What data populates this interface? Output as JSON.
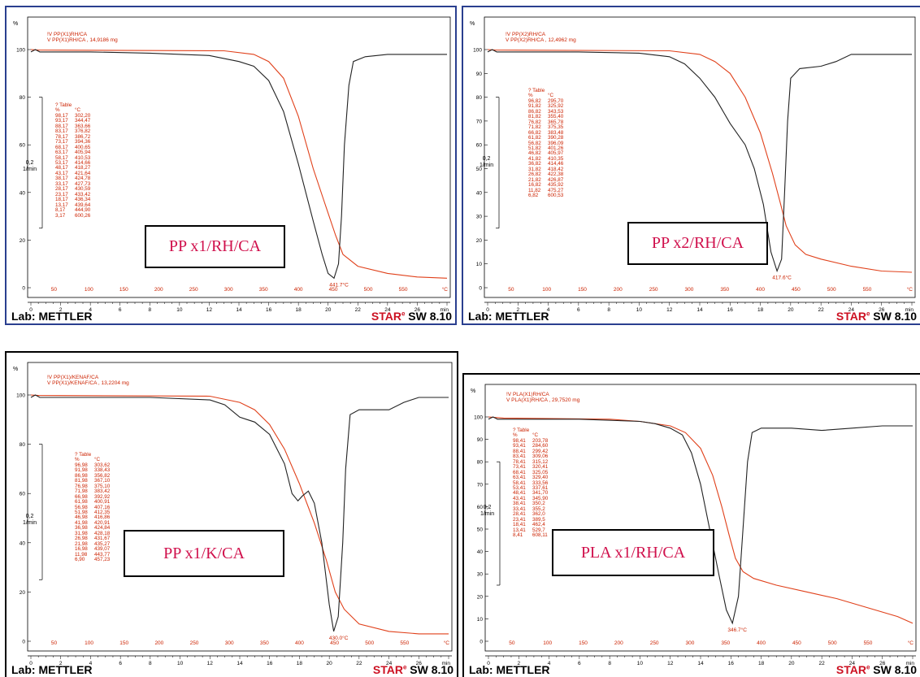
{
  "footer": {
    "lab": "Lab: METTLER",
    "brand": "STAR",
    "reg": "e",
    "version": "SW 8.10"
  },
  "units": {
    "percent": "%",
    "celsius": "°C",
    "min": "min"
  },
  "chart_data": [
    {
      "type": "line",
      "sample_label": "PP x1/RH/CA",
      "header_line1": "!V PP(X1)RH/CA",
      "header_line2": "V PP(X1)RH/CA , 14,9186 mg",
      "y_ticks": [
        "100",
        "80",
        "60",
        "40",
        "20",
        "0"
      ],
      "time_ticks": [
        "0",
        "2",
        "4",
        "6",
        "8",
        "10",
        "12",
        "14",
        "16",
        "18",
        "20",
        "22",
        "24",
        "26"
      ],
      "time_unit": "min",
      "temp_ticks": [
        "50",
        "100",
        "150",
        "200",
        "250",
        "300",
        "350",
        "400",
        "450",
        "500",
        "550"
      ],
      "temp_unit": "°C",
      "scale_value": "0,2",
      "scale_unit": "1/min",
      "peak_label": "441.7°C",
      "table_title": "? Table",
      "table_headers": [
        "%",
        "°C"
      ],
      "table": [
        [
          "98,17",
          "302,20"
        ],
        [
          "93,17",
          "344,47"
        ],
        [
          "88,17",
          "363,66"
        ],
        [
          "83,17",
          "376,82"
        ],
        [
          "78,17",
          "386,72"
        ],
        [
          "73,17",
          "394,36"
        ],
        [
          "68,17",
          "400,65"
        ],
        [
          "63,17",
          "405,94"
        ],
        [
          "58,17",
          "410,53"
        ],
        [
          "53,17",
          "414,66"
        ],
        [
          "48,17",
          "418,27"
        ],
        [
          "43,17",
          "421,64"
        ],
        [
          "38,17",
          "424,78"
        ],
        [
          "33,17",
          "427,73"
        ],
        [
          "28,17",
          "430,59"
        ],
        [
          "23,17",
          "433,42"
        ],
        [
          "18,17",
          "436,34"
        ],
        [
          "13,17",
          "439,64"
        ],
        [
          "8,17",
          "444,90"
        ],
        [
          "3,17",
          "600,26"
        ]
      ],
      "tg_curve": [
        [
          0,
          100
        ],
        [
          0.5,
          99.8
        ],
        [
          13,
          99.5
        ],
        [
          15,
          98
        ],
        [
          16,
          95
        ],
        [
          17,
          88
        ],
        [
          18,
          72
        ],
        [
          19,
          50
        ],
        [
          19.8,
          35
        ],
        [
          20.5,
          22
        ],
        [
          21,
          14
        ],
        [
          22,
          9
        ],
        [
          24,
          6
        ],
        [
          26,
          4.5
        ],
        [
          28,
          4
        ]
      ],
      "dtg_curve": [
        [
          0,
          99
        ],
        [
          0.3,
          100
        ],
        [
          0.6,
          99
        ],
        [
          4,
          99
        ],
        [
          8,
          98.5
        ],
        [
          12,
          97.5
        ],
        [
          14,
          95
        ],
        [
          15,
          93
        ],
        [
          16,
          87
        ],
        [
          17,
          74
        ],
        [
          18,
          52
        ],
        [
          19,
          28
        ],
        [
          19.6,
          14
        ],
        [
          20,
          6
        ],
        [
          20.4,
          4
        ],
        [
          20.7,
          10
        ],
        [
          20.9,
          30
        ],
        [
          21.1,
          60
        ],
        [
          21.4,
          85
        ],
        [
          21.7,
          95
        ],
        [
          22.5,
          97
        ],
        [
          24,
          98
        ],
        [
          28,
          98
        ]
      ]
    },
    {
      "type": "line",
      "sample_label": "PP x2/RH/CA",
      "header_line1": "!V PP(X2)RH/CA",
      "header_line2": "V PP(X2)RH/CA , 12,4962 mg",
      "y_ticks": [
        "100",
        "90",
        "80",
        "70",
        "60",
        "50",
        "40",
        "30",
        "20",
        "10",
        "0"
      ],
      "time_ticks": [
        "0",
        "2",
        "4",
        "6",
        "8",
        "10",
        "12",
        "14",
        "16",
        "18",
        "20",
        "22",
        "24",
        "26"
      ],
      "time_unit": "min",
      "temp_ticks": [
        "50",
        "100",
        "150",
        "200",
        "250",
        "300",
        "350",
        "400",
        "450",
        "500",
        "550"
      ],
      "temp_unit": "°C",
      "scale_value": "0,2",
      "scale_unit": "1/min",
      "peak_label": "417.6°C",
      "table_title": "? Table",
      "table_headers": [
        "%",
        "°C"
      ],
      "table": [
        [
          "96,82",
          "295,70"
        ],
        [
          "91,82",
          "325,92"
        ],
        [
          "86,82",
          "343,53"
        ],
        [
          "81,82",
          "355,40"
        ],
        [
          "76,82",
          "365,78"
        ],
        [
          "71,82",
          "375,35"
        ],
        [
          "66,82",
          "383,48"
        ],
        [
          "61,82",
          "390,28"
        ],
        [
          "56,82",
          "396,09"
        ],
        [
          "51,82",
          "401,26"
        ],
        [
          "46,82",
          "405,97"
        ],
        [
          "41,82",
          "410,35"
        ],
        [
          "36,82",
          "414,46"
        ],
        [
          "31,82",
          "418,42"
        ],
        [
          "26,82",
          "422,38"
        ],
        [
          "21,82",
          "426,87"
        ],
        [
          "16,82",
          "435,92"
        ],
        [
          "11,82",
          "475,27"
        ],
        [
          "6,82",
          "600,53"
        ]
      ],
      "tg_curve": [
        [
          0,
          100
        ],
        [
          0.5,
          99.8
        ],
        [
          12,
          99.5
        ],
        [
          14,
          98
        ],
        [
          15,
          95
        ],
        [
          16,
          90
        ],
        [
          17,
          80
        ],
        [
          18,
          65
        ],
        [
          18.8,
          48
        ],
        [
          19.3,
          36
        ],
        [
          19.7,
          26
        ],
        [
          20.3,
          18
        ],
        [
          21,
          14
        ],
        [
          22,
          12
        ],
        [
          24,
          9
        ],
        [
          26,
          7
        ],
        [
          28,
          6.5
        ]
      ],
      "dtg_curve": [
        [
          0,
          99
        ],
        [
          0.3,
          100
        ],
        [
          0.6,
          99
        ],
        [
          6,
          99
        ],
        [
          10,
          98.5
        ],
        [
          12,
          97
        ],
        [
          13,
          94
        ],
        [
          14,
          88
        ],
        [
          15,
          80
        ],
        [
          16,
          69
        ],
        [
          17,
          60
        ],
        [
          17.6,
          50
        ],
        [
          18.2,
          35
        ],
        [
          18.7,
          15
        ],
        [
          19.1,
          7
        ],
        [
          19.4,
          12
        ],
        [
          19.6,
          40
        ],
        [
          19.8,
          70
        ],
        [
          20,
          88
        ],
        [
          20.6,
          92
        ],
        [
          22,
          93
        ],
        [
          23,
          95
        ],
        [
          24,
          98
        ],
        [
          26,
          98
        ],
        [
          28,
          98
        ]
      ]
    },
    {
      "type": "line",
      "sample_label": "PP x1/K/CA",
      "header_line1": "!V PP(X1)/KENAF/CA",
      "header_line2": "V PP(X1)/KENAF/CA , 13,2204 mg",
      "y_ticks": [
        "100",
        "80",
        "60",
        "40",
        "20",
        "0"
      ],
      "time_ticks": [
        "0",
        "2",
        "4",
        "6",
        "8",
        "10",
        "12",
        "14",
        "16",
        "18",
        "20",
        "22",
        "24",
        "26"
      ],
      "time_unit": "min",
      "temp_ticks": [
        "50",
        "100",
        "150",
        "200",
        "250",
        "300",
        "350",
        "400",
        "450",
        "500",
        "550"
      ],
      "temp_unit": "°C",
      "scale_value": "0,2",
      "scale_unit": "1/min",
      "peak_label": "430.0°C",
      "table_title": "? Table",
      "table_headers": [
        "%",
        "°C"
      ],
      "table": [
        [
          "96,98",
          "303,62"
        ],
        [
          "91,98",
          "338,43"
        ],
        [
          "86,98",
          "356,82"
        ],
        [
          "81,98",
          "367,10"
        ],
        [
          "76,98",
          "375,10"
        ],
        [
          "71,98",
          "383,42"
        ],
        [
          "66,98",
          "392,92"
        ],
        [
          "61,98",
          "400,91"
        ],
        [
          "56,98",
          "407,16"
        ],
        [
          "51,98",
          "412,35"
        ],
        [
          "46,98",
          "416,86"
        ],
        [
          "41,98",
          "420,91"
        ],
        [
          "36,98",
          "424,84"
        ],
        [
          "31,98",
          "428,18"
        ],
        [
          "26,98",
          "431,67"
        ],
        [
          "21,98",
          "435,27"
        ],
        [
          "16,98",
          "439,07"
        ],
        [
          "11,98",
          "443,77"
        ],
        [
          "6,90",
          "457,23"
        ]
      ],
      "tg_curve": [
        [
          0,
          100
        ],
        [
          0.5,
          99.8
        ],
        [
          12,
          99.5
        ],
        [
          14,
          97
        ],
        [
          15,
          94
        ],
        [
          16,
          88
        ],
        [
          17,
          78
        ],
        [
          18,
          64
        ],
        [
          19,
          48
        ],
        [
          19.8,
          33
        ],
        [
          20.4,
          20
        ],
        [
          21,
          13
        ],
        [
          22,
          7
        ],
        [
          24,
          4
        ],
        [
          26,
          3
        ],
        [
          28,
          3
        ]
      ],
      "dtg_curve": [
        [
          0,
          99
        ],
        [
          0.3,
          100
        ],
        [
          0.6,
          99
        ],
        [
          8,
          99
        ],
        [
          12,
          98
        ],
        [
          13,
          96
        ],
        [
          14,
          91
        ],
        [
          14.5,
          90
        ],
        [
          15,
          89
        ],
        [
          16,
          84
        ],
        [
          17,
          72
        ],
        [
          17.5,
          60
        ],
        [
          17.9,
          57
        ],
        [
          18.2,
          59
        ],
        [
          18.6,
          61
        ],
        [
          19,
          56
        ],
        [
          19.5,
          40
        ],
        [
          20,
          15
        ],
        [
          20.3,
          4
        ],
        [
          20.6,
          10
        ],
        [
          20.9,
          40
        ],
        [
          21.1,
          70
        ],
        [
          21.4,
          92
        ],
        [
          22,
          94
        ],
        [
          24,
          94
        ],
        [
          25,
          97
        ],
        [
          26,
          99
        ],
        [
          28,
          99
        ]
      ]
    },
    {
      "type": "line",
      "sample_label": "PLA x1/RH/CA",
      "header_line1": "!V PLA(X1)RH/CA",
      "header_line2": "V PLA(X1)RH/CA , 29,7520 mg",
      "y_ticks": [
        "100",
        "90",
        "80",
        "70",
        "60",
        "50",
        "40",
        "30",
        "20",
        "10",
        "0"
      ],
      "time_ticks": [
        "0",
        "2",
        "4",
        "6",
        "8",
        "10",
        "12",
        "14",
        "16",
        "18",
        "20",
        "22",
        "24",
        "26"
      ],
      "time_unit": "min",
      "temp_ticks": [
        "50",
        "100",
        "150",
        "200",
        "250",
        "300",
        "350",
        "400",
        "450",
        "500",
        "550"
      ],
      "temp_unit": "°C",
      "scale_value": "0,2",
      "scale_unit": "1/min",
      "peak_label": "346.7°C",
      "table_title": "? Table",
      "table_headers": [
        "%",
        "°C"
      ],
      "table": [
        [
          "98,41",
          "203,78"
        ],
        [
          "93,41",
          "284,60"
        ],
        [
          "88,41",
          "299,42"
        ],
        [
          "83,41",
          "309,06"
        ],
        [
          "78,41",
          "315,12"
        ],
        [
          "73,41",
          "320,41"
        ],
        [
          "68,41",
          "325,05"
        ],
        [
          "63,41",
          "329,40"
        ],
        [
          "58,41",
          "333,56"
        ],
        [
          "53,41",
          "337,61"
        ],
        [
          "48,41",
          "341,70"
        ],
        [
          "43,41",
          "345,90"
        ],
        [
          "38,41",
          "350,2"
        ],
        [
          "33,41",
          "355,2"
        ],
        [
          "28,41",
          "362,0"
        ],
        [
          "23,41",
          "389,5"
        ],
        [
          "18,41",
          "462,4"
        ],
        [
          "13,41",
          "529,7"
        ],
        [
          "8,41",
          "608,11"
        ]
      ],
      "tg_curve": [
        [
          0,
          100
        ],
        [
          1,
          99.5
        ],
        [
          8,
          99
        ],
        [
          10,
          98
        ],
        [
          12,
          96
        ],
        [
          13,
          93
        ],
        [
          14,
          86
        ],
        [
          14.8,
          74
        ],
        [
          15.4,
          60
        ],
        [
          15.9,
          47
        ],
        [
          16.3,
          37
        ],
        [
          16.8,
          31
        ],
        [
          17.5,
          28
        ],
        [
          19,
          25
        ],
        [
          21,
          22
        ],
        [
          23,
          19
        ],
        [
          25,
          15
        ],
        [
          27,
          11
        ],
        [
          28,
          8
        ]
      ],
      "dtg_curve": [
        [
          0,
          99
        ],
        [
          0.3,
          100
        ],
        [
          0.6,
          99
        ],
        [
          6,
          99
        ],
        [
          10,
          98
        ],
        [
          11,
          97
        ],
        [
          12,
          95
        ],
        [
          12.8,
          92
        ],
        [
          13.4,
          84
        ],
        [
          14,
          70
        ],
        [
          14.6,
          50
        ],
        [
          15.2,
          30
        ],
        [
          15.7,
          14
        ],
        [
          16.1,
          8
        ],
        [
          16.5,
          20
        ],
        [
          16.8,
          50
        ],
        [
          17.1,
          80
        ],
        [
          17.4,
          93
        ],
        [
          18,
          95
        ],
        [
          20,
          95
        ],
        [
          22,
          94
        ],
        [
          24,
          95
        ],
        [
          26,
          96
        ],
        [
          28,
          96
        ]
      ]
    }
  ]
}
